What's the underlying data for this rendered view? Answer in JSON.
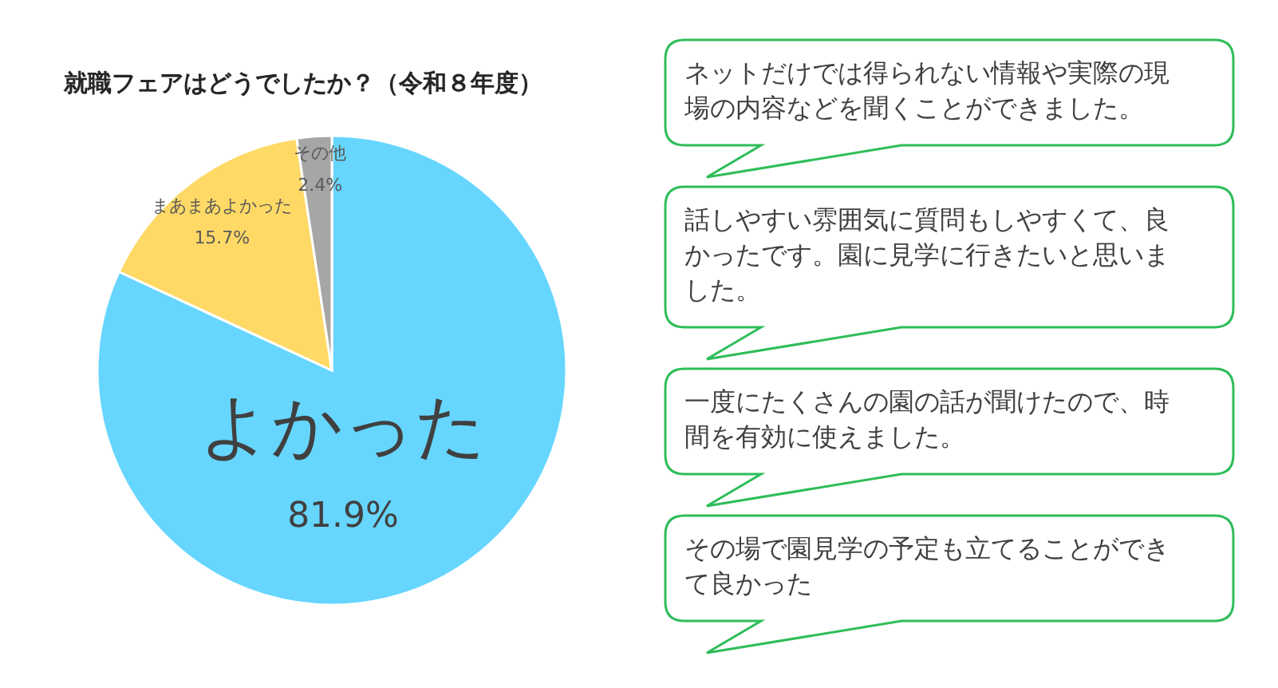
{
  "chart_data": {
    "type": "pie",
    "title": "就職フェアはどうでしたか？（令和８年度）",
    "categories": [
      "よかった",
      "まあまあよかった",
      "その他"
    ],
    "values": [
      81.9,
      15.7,
      2.4
    ],
    "colors": [
      "#66d6ff",
      "#ffd966",
      "#a6a6a6"
    ],
    "value_labels": [
      "81.9%",
      "15.7%",
      "2.4%"
    ],
    "annotations": [
      "ネットだけでは得られない情報や実際の現場の内容などを聞くことができました。",
      "話しやすい雰囲気に質問もしやすくて、良かったです。園に見学に行きたいと思いました。",
      "一度にたくさんの園の話が聞けたので、時間を有効に使えました。",
      "その場で園見学の予定も立てることができて良かった"
    ]
  }
}
